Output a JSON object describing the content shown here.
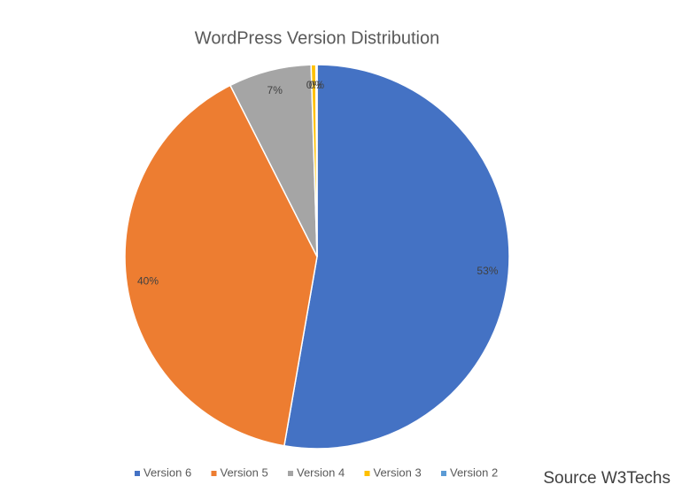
{
  "chart_data": {
    "type": "pie",
    "title": "WordPress Version Distribution",
    "categories": [
      "Version 6",
      "Version 5",
      "Version 4",
      "Version 3",
      "Version 2"
    ],
    "values": [
      53,
      40,
      7,
      0.4,
      0.1
    ],
    "value_labels": [
      "53%",
      "40%",
      "7%",
      "0%",
      "0%"
    ],
    "colors": [
      "#4472c4",
      "#ed7d31",
      "#a5a5a5",
      "#ffc000",
      "#5b9bd5"
    ],
    "annotation": "Source W3Techs"
  }
}
